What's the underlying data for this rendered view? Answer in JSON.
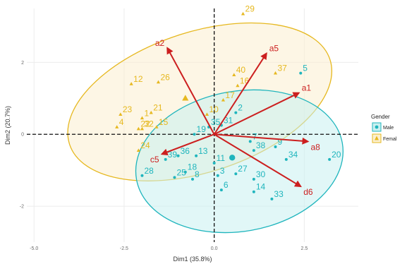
{
  "chart_data": {
    "type": "scatter",
    "xlabel": "Dim1 (35.8%)",
    "ylabel": "Dim2 (20.7%)",
    "xlim": [
      -5.2,
      4.0
    ],
    "ylim": [
      -3.0,
      3.5
    ],
    "xticks": [
      -5.0,
      -2.5,
      0.0,
      2.5
    ],
    "yticks": [
      -2,
      0,
      2
    ],
    "grid": true,
    "legend": {
      "title": "Gender",
      "placement": "right",
      "entries": [
        "Male",
        "Femal"
      ]
    },
    "colors": {
      "Male": "#1fb5bd",
      "Female": "#e6b81f",
      "vector": "#cc1f1f",
      "ellipse_male_fill": "#c9f0f0",
      "ellipse_female_fill": "#fbefcf"
    },
    "series": [
      {
        "name": "Male",
        "marker": "circle",
        "centroid": [
          0.5,
          -0.65
        ],
        "ellipse": {
          "cx": 0.7,
          "cy": -0.75,
          "rx": 2.9,
          "ry": 1.95,
          "angle_deg": 10
        },
        "points": [
          {
            "label": "2",
            "x": 0.6,
            "y": 0.6
          },
          {
            "label": "5",
            "x": 2.4,
            "y": 1.7
          },
          {
            "label": "7",
            "x": 1.0,
            "y": -0.2
          },
          {
            "label": "8",
            "x": -0.6,
            "y": -1.25
          },
          {
            "label": "3",
            "x": 0.1,
            "y": -1.15
          },
          {
            "label": "6",
            "x": 0.2,
            "y": -1.55
          },
          {
            "label": "9",
            "x": 1.7,
            "y": -0.35
          },
          {
            "label": "11",
            "x": 0.0,
            "y": -0.8
          },
          {
            "label": "13",
            "x": -0.5,
            "y": -0.6
          },
          {
            "label": "14",
            "x": 1.1,
            "y": -1.6
          },
          {
            "label": "18",
            "x": -0.8,
            "y": -1.05
          },
          {
            "label": "19",
            "x": -0.55,
            "y": 0.0
          },
          {
            "label": "20",
            "x": 3.2,
            "y": -0.7
          },
          {
            "label": "25",
            "x": -1.1,
            "y": -1.2
          },
          {
            "label": "27",
            "x": 0.6,
            "y": -1.1
          },
          {
            "label": "28",
            "x": -2.0,
            "y": -1.15
          },
          {
            "label": "30",
            "x": 1.1,
            "y": -1.25
          },
          {
            "label": "31",
            "x": 0.2,
            "y": 0.25
          },
          {
            "label": "33",
            "x": 1.6,
            "y": -1.8
          },
          {
            "label": "34",
            "x": 2.0,
            "y": -0.7
          },
          {
            "label": "35",
            "x": -0.15,
            "y": 0.2
          },
          {
            "label": "36",
            "x": -1.0,
            "y": -0.6
          },
          {
            "label": "38",
            "x": 1.1,
            "y": -0.45
          },
          {
            "label": "39",
            "x": -1.35,
            "y": -0.7
          }
        ]
      },
      {
        "name": "Femal",
        "marker": "triangle",
        "centroid": [
          -0.8,
          1.0
        ],
        "ellipse": {
          "cx": -0.4,
          "cy": 0.9,
          "rx": 3.8,
          "ry": 1.95,
          "angle_deg": 18
        },
        "points": [
          {
            "label": "1",
            "x": -2.0,
            "y": 0.45
          },
          {
            "label": "4",
            "x": -2.7,
            "y": 0.2
          },
          {
            "label": "10",
            "x": -0.2,
            "y": 0.55
          },
          {
            "label": "12",
            "x": -2.3,
            "y": 1.4
          },
          {
            "label": "15",
            "x": -1.6,
            "y": 0.2
          },
          {
            "label": "16",
            "x": 0.65,
            "y": 1.35
          },
          {
            "label": "17",
            "x": 0.25,
            "y": 0.95
          },
          {
            "label": "21",
            "x": -1.75,
            "y": 0.6
          },
          {
            "label": "22",
            "x": -2.1,
            "y": 0.15
          },
          {
            "label": "23",
            "x": -2.6,
            "y": 0.55
          },
          {
            "label": "24",
            "x": -2.1,
            "y": -0.45
          },
          {
            "label": "26",
            "x": -1.55,
            "y": 1.45
          },
          {
            "label": "29",
            "x": 0.8,
            "y": 3.35
          },
          {
            "label": "32",
            "x": -2.0,
            "y": 0.15
          },
          {
            "label": "37",
            "x": 1.7,
            "y": 1.7
          },
          {
            "label": "40",
            "x": 0.55,
            "y": 1.65
          }
        ]
      }
    ],
    "vectors": [
      {
        "label": "a1",
        "x": 2.35,
        "y": 1.15
      },
      {
        "label": "a2",
        "x": -1.3,
        "y": 2.4
      },
      {
        "label": "a5",
        "x": 1.45,
        "y": 2.25
      },
      {
        "label": "a8",
        "x": 2.6,
        "y": -0.2
      },
      {
        "label": "c5",
        "x": -1.45,
        "y": -0.55
      },
      {
        "label": "d6",
        "x": 2.4,
        "y": -1.45
      }
    ]
  }
}
